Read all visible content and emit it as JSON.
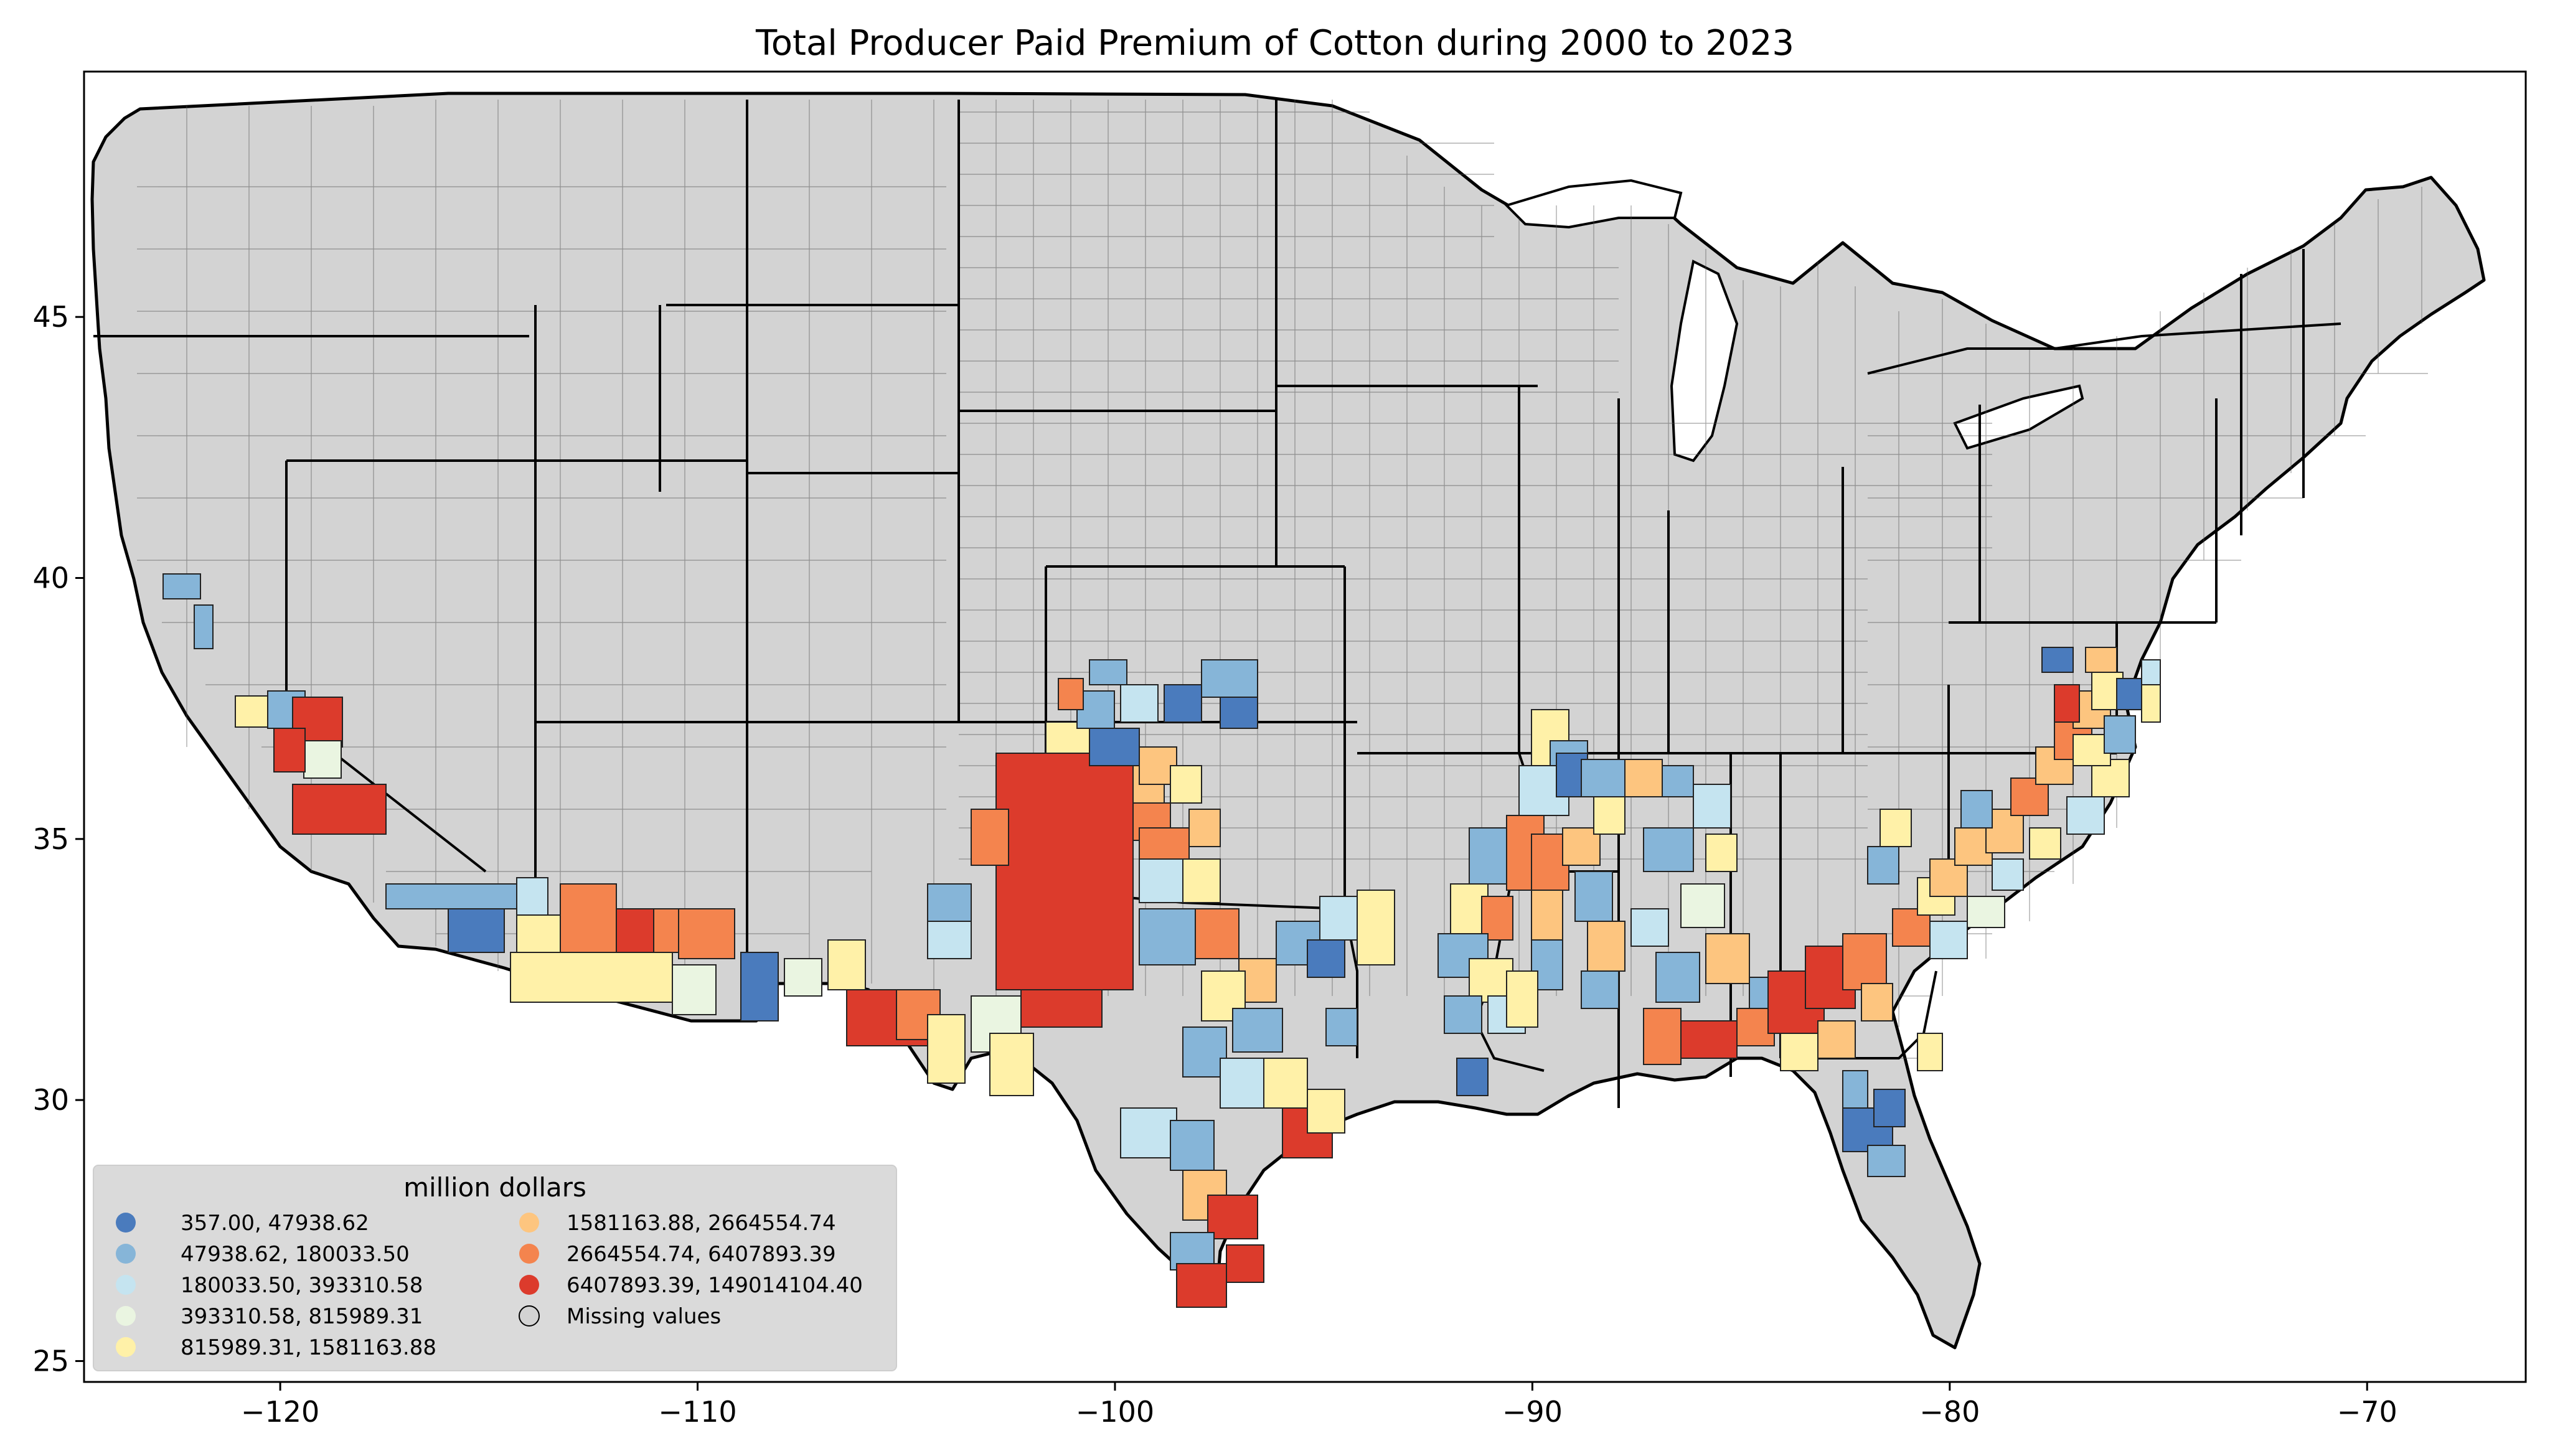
{
  "map": {
    "title": "Total Producer Paid Premium of Cotton during 2000 to 2023",
    "x_ticks": [
      "−120",
      "−110",
      "−100",
      "−90",
      "−80",
      "−70"
    ],
    "y_ticks": [
      "45",
      "40",
      "35",
      "30",
      "25"
    ],
    "x_tick_values": [
      -120,
      -110,
      -100,
      -90,
      -80,
      -70
    ],
    "y_tick_values": [
      45,
      40,
      35,
      30,
      25
    ],
    "xlim": [
      -124.7,
      -66.2
    ],
    "ylim": [
      24.6,
      49.7
    ],
    "base_color": "#d3d3d3",
    "state_border_color": "#000000"
  },
  "legend": {
    "title": "million dollars",
    "items": [
      {
        "label": "357.00,    47938.62",
        "color": "#4a7bbd"
      },
      {
        "label": "47938.62,    180033.50",
        "color": "#86b5d8"
      },
      {
        "label": "180033.50,    393310.58",
        "color": "#c5e4f0"
      },
      {
        "label": "393310.58,    815989.31",
        "color": "#eaf5e1"
      },
      {
        "label": "815989.31,    1581163.88",
        "color": "#fff1a8"
      },
      {
        "label": "1581163.88,    2664554.74",
        "color": "#fdc57f"
      },
      {
        "label": "2664554.74,    6407893.39",
        "color": "#f4844e"
      },
      {
        "label": "6407893.39, 149014104.40",
        "color": "#dc3b2c"
      },
      {
        "label": "Missing values",
        "color": "#d3d3d3"
      }
    ]
  }
}
